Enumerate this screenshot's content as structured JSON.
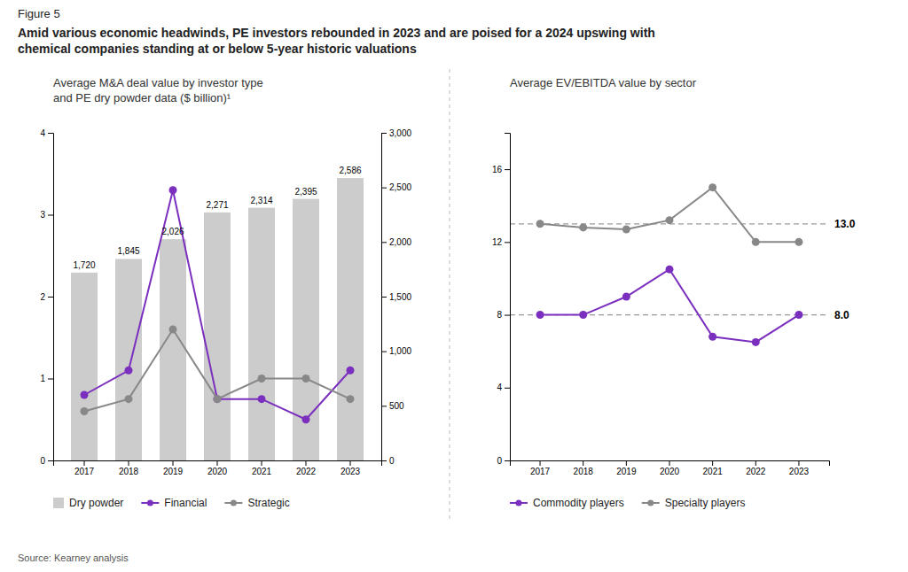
{
  "title": "Amid various economic headwinds, PE investors rebounded in 2023 and are poised for a 2024 upswing with\nchemical companies standing at or below 5-year historic valuations",
  "annotations": [
    "Figure 5",
    "Source: Kearney analysis"
  ],
  "chart_data": [
    {
      "type": "bar",
      "title": "Average M&A deal value by investor type\nand PE dry powder data ($ billion)¹",
      "categories": [
        "2017",
        "2018",
        "2019",
        "2020",
        "2021",
        "2022",
        "2023"
      ],
      "series": [
        {
          "name": "Dry powder",
          "type": "bar",
          "color": "#CCCCCC",
          "axis": "y2",
          "values": [
            1720,
            1845,
            2026,
            2271,
            2314,
            2395,
            2586
          ],
          "value_labels": [
            "1,720",
            "1,845",
            "2,026",
            "2,271",
            "2,314",
            "2,395",
            "2,586"
          ],
          "data_labels": true
        },
        {
          "name": "Financial",
          "type": "line",
          "color": "#7B2FBE",
          "marker": "circle",
          "values": [
            0.8,
            1.1,
            3.3,
            0.75,
            0.75,
            0.5,
            1.1
          ]
        },
        {
          "name": "Strategic",
          "type": "line",
          "color": "#888888",
          "marker": "circle",
          "values": [
            0.6,
            0.75,
            1.6,
            0.75,
            1.0,
            1.0,
            0.75
          ]
        }
      ],
      "ylim": [
        0,
        4
      ],
      "yticks": [
        0,
        1,
        2,
        3,
        4
      ],
      "y2lim": [
        0,
        3000
      ],
      "y2ticks": [
        0,
        500,
        {
          "value": 1000,
          "label": "1,000"
        },
        {
          "value": 1500,
          "label": "1,500"
        },
        {
          "value": 2000,
          "label": "2,000"
        },
        {
          "value": 2500,
          "label": "2,500"
        },
        {
          "value": 3000,
          "label": "3,000"
        }
      ],
      "grid": false,
      "legend": "bottom"
    },
    {
      "type": "line",
      "title": "Average EV/EBITDA value by sector",
      "categories": [
        "2017",
        "2018",
        "2019",
        "2020",
        "2021",
        "2022",
        "2023"
      ],
      "series": [
        {
          "name": "Commodity players",
          "color": "#7B2FBE",
          "marker": "circle",
          "values": [
            8.0,
            8.0,
            9.0,
            10.5,
            6.8,
            6.5,
            8.0
          ]
        },
        {
          "name": "Specialty players",
          "color": "#888888",
          "marker": "circle",
          "values": [
            13.0,
            12.8,
            12.7,
            13.2,
            15.0,
            12.0,
            12.0
          ]
        }
      ],
      "reference_lines": [
        {
          "value": 13.0,
          "label": "13.0",
          "color": "#999999",
          "line_style": "dashed"
        },
        {
          "value": 8.0,
          "label": "8.0",
          "color": "#999999",
          "line_style": "dashed"
        }
      ],
      "ylim": [
        0,
        18
      ],
      "yticks": [
        0,
        4,
        8,
        12,
        16
      ],
      "grid": false,
      "legend": "bottom"
    }
  ]
}
